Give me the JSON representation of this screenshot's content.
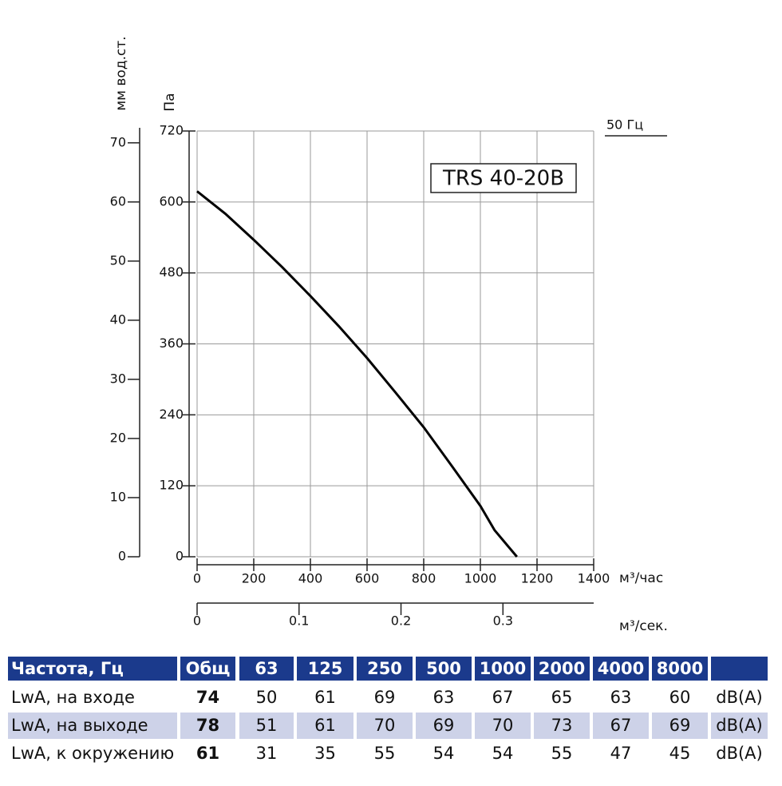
{
  "chart_data": {
    "type": "line",
    "x_label": "м³/час",
    "x2_label": "м³/сек.",
    "y_label": "Па",
    "y2_label": "мм вод.ст.",
    "annotation": "50 Гц",
    "x": [
      0,
      100,
      200,
      300,
      400,
      500,
      600,
      700,
      800,
      900,
      1000,
      1050,
      1129
    ],
    "series": [
      {
        "name": "TRS 40-20B",
        "color": "#000000",
        "values": [
          618,
          580,
          536,
          490,
          441,
          390,
          336,
          278,
          219,
          153,
          86,
          45,
          0
        ]
      }
    ],
    "xlim": [
      0,
      1400
    ],
    "xticks": [
      0,
      200,
      400,
      600,
      800,
      1000,
      1200,
      1400
    ],
    "x2lim": [
      0,
      0.389
    ],
    "x2ticks": [
      0,
      0.1,
      0.2,
      0.3
    ],
    "ylim": [
      0,
      720
    ],
    "yticks": [
      0,
      120,
      240,
      360,
      480,
      600,
      720
    ],
    "y2lim": [
      0,
      72
    ],
    "y2ticks": [
      0,
      10,
      20,
      30,
      40,
      50,
      60,
      70
    ],
    "grid": true
  },
  "table": {
    "header": [
      "Частота, Гц",
      "Общ",
      "63",
      "125",
      "250",
      "500",
      "1000",
      "2000",
      "4000",
      "8000"
    ],
    "rows": [
      [
        "LwA, на входе",
        74,
        50,
        61,
        69,
        63,
        67,
        65,
        63,
        60,
        "dB(A)"
      ],
      [
        "LwA, на выходе",
        78,
        51,
        61,
        70,
        69,
        70,
        73,
        67,
        69,
        "dB(A)"
      ],
      [
        "LwA, к окружению",
        61,
        31,
        35,
        55,
        54,
        54,
        55,
        47,
        45,
        "dB(A)"
      ]
    ]
  }
}
